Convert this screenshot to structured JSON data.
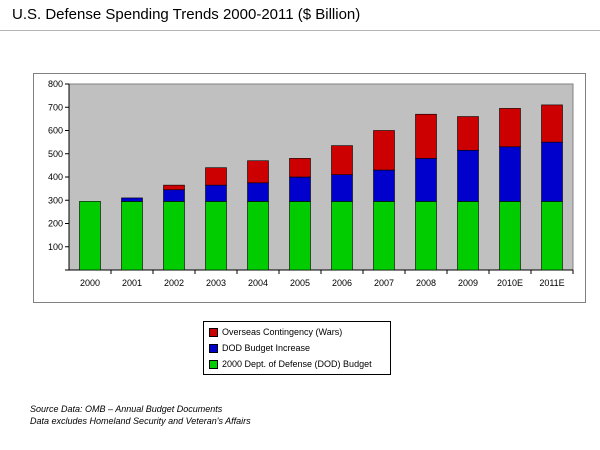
{
  "page": {
    "title": "U.S. Defense Spending Trends 2000-2011 ($ Billion)",
    "footnotes": [
      "Source Data: OMB – Annual Budget Documents",
      "Data excludes Homeland Security and Veteran's Affairs"
    ]
  },
  "chart_data": {
    "type": "bar",
    "stacked": true,
    "categories": [
      "2000",
      "2001",
      "2002",
      "2003",
      "2004",
      "2005",
      "2006",
      "2007",
      "2008",
      "2009",
      "2010E",
      "2011E"
    ],
    "series": [
      {
        "name": "2000 Dept. of Defense (DOD) Budget",
        "color": "#00cc00",
        "values": [
          295,
          295,
          295,
          295,
          295,
          295,
          295,
          295,
          295,
          295,
          295,
          295
        ]
      },
      {
        "name": "DOD Budget Increase",
        "color": "#0000cc",
        "values": [
          0,
          15,
          50,
          70,
          80,
          105,
          115,
          135,
          185,
          220,
          235,
          255
        ]
      },
      {
        "name": "Overseas Contingency (Wars)",
        "color": "#cc0000",
        "values": [
          0,
          0,
          20,
          75,
          95,
          80,
          125,
          170,
          190,
          145,
          165,
          160
        ]
      }
    ],
    "legend_order": [
      "Overseas Contingency (Wars)",
      "DOD Budget Increase",
      "2000 Dept. of Defense (DOD) Budget"
    ],
    "yticks": [
      0,
      100,
      200,
      300,
      400,
      500,
      600,
      700,
      800
    ],
    "ylim": [
      0,
      800
    ],
    "grid": false,
    "plot_background": "#c0c0c0",
    "legend_position": "bottom",
    "title": "",
    "xlabel": "",
    "ylabel": ""
  }
}
